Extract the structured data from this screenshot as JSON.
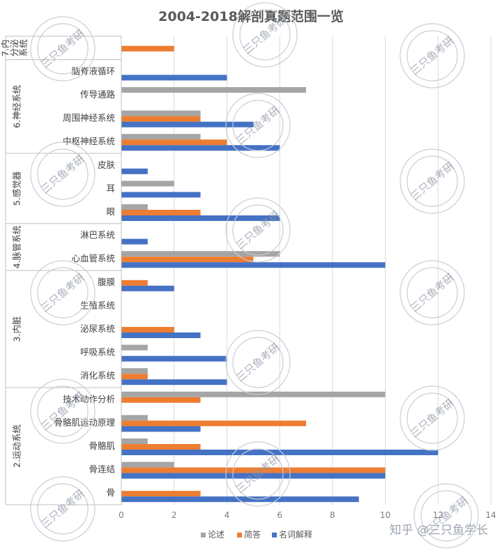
{
  "chart_data": {
    "type": "bar",
    "orientation": "horizontal",
    "title": "2004-2018解剖真题范围一览",
    "xlim": [
      0,
      14
    ],
    "xticks": [
      0,
      2,
      4,
      6,
      8,
      10,
      12,
      14
    ],
    "grid": true,
    "legend_position": "bottom",
    "series": [
      {
        "name": "论述",
        "color": "#a5a5a5"
      },
      {
        "name": "简答",
        "color": "#ed7d31"
      },
      {
        "name": "名词解释",
        "color": "#4472c4"
      }
    ],
    "groups": [
      {
        "name": "7.内分泌系统",
        "label_lines": [
          "7.内",
          "分泌",
          "系统"
        ],
        "categories": [
          {
            "name": "",
            "values": [
              0,
              2,
              0
            ]
          }
        ]
      },
      {
        "name": "6.神经系统",
        "categories": [
          {
            "name": "脑脊液循环",
            "values": [
              0,
              0,
              4
            ]
          },
          {
            "name": "传导通路",
            "values": [
              7,
              0,
              0
            ]
          },
          {
            "name": "周围神经系统",
            "values": [
              3,
              3,
              5
            ]
          },
          {
            "name": "中枢神经系统",
            "values": [
              3,
              4,
              6
            ]
          }
        ]
      },
      {
        "name": "5.感觉器",
        "categories": [
          {
            "name": "皮肤",
            "values": [
              0,
              0,
              1
            ]
          },
          {
            "name": "耳",
            "values": [
              2,
              0,
              3
            ]
          },
          {
            "name": "眼",
            "values": [
              1,
              3,
              6
            ]
          }
        ]
      },
      {
        "name": "4.脉管系统",
        "categories": [
          {
            "name": "淋巴系统",
            "values": [
              0,
              0,
              1
            ]
          },
          {
            "name": "心血管系统",
            "values": [
              6,
              5,
              10
            ]
          }
        ]
      },
      {
        "name": "3.内脏",
        "categories": [
          {
            "name": "腹膜",
            "values": [
              0,
              1,
              2
            ]
          },
          {
            "name": "生殖系统",
            "values": [
              0,
              0,
              0
            ]
          },
          {
            "name": "泌尿系统",
            "values": [
              0,
              2,
              3
            ]
          },
          {
            "name": "呼吸系统",
            "values": [
              1,
              0,
              4
            ]
          },
          {
            "name": "消化系统",
            "values": [
              1,
              1,
              4
            ]
          }
        ]
      },
      {
        "name": "2.运动系统",
        "categories": [
          {
            "name": "技术动作分析",
            "values": [
              10,
              3,
              0
            ]
          },
          {
            "name": "骨骼肌运动原理",
            "values": [
              1,
              7,
              3
            ]
          },
          {
            "name": "骨骼肌",
            "values": [
              1,
              3,
              12
            ]
          },
          {
            "name": "骨连结",
            "values": [
              2,
              10,
              10
            ]
          },
          {
            "name": "骨",
            "values": [
              0,
              3,
              9
            ]
          }
        ]
      }
    ]
  },
  "watermark": {
    "text": "三只鱼考研",
    "footer": "知乎 @三只鱼学长"
  }
}
